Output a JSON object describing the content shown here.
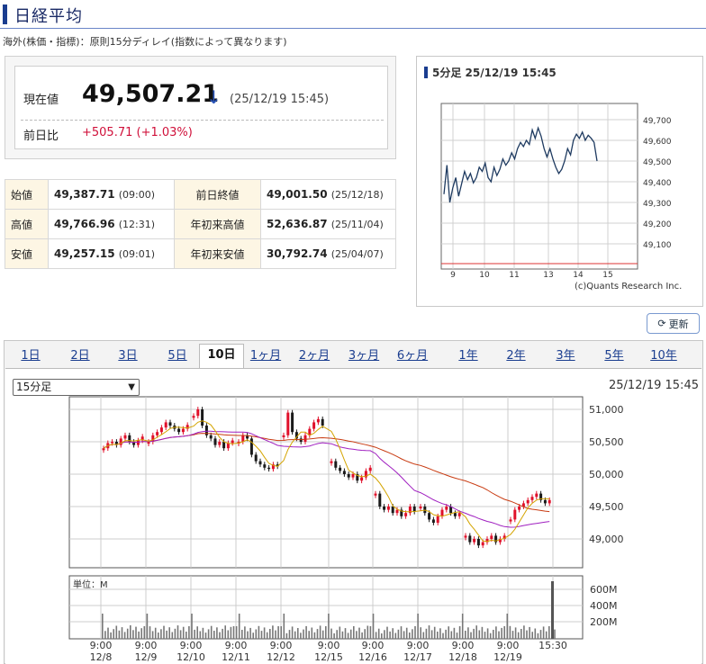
{
  "header": {
    "title": "日経平均",
    "note": "海外(株価・指標)：原則15分ディレイ(指数によって異なります)"
  },
  "quote": {
    "current_label": "現在値",
    "price": "49,507.21",
    "arrow": "↓",
    "time": "(25/12/19 15:45)",
    "change_label": "前日比",
    "change": "+505.71 (+1.03%)"
  },
  "stats": {
    "open_label": "始値",
    "open": "49,387.71",
    "open_time": "(09:00)",
    "prev_label": "前日終値",
    "prev": "49,001.50",
    "prev_date": "(25/12/18)",
    "high_label": "高値",
    "high": "49,766.96",
    "high_time": "(12:31)",
    "ytd_high_label": "年初来高値",
    "ytd_high": "52,636.87",
    "ytd_high_date": "(25/11/04)",
    "low_label": "安値",
    "low": "49,257.15",
    "low_time": "(09:01)",
    "ytd_low_label": "年初来安値",
    "ytd_low": "30,792.74",
    "ytd_low_date": "(25/04/07)"
  },
  "mini_chart": {
    "title": "5分足 25/12/19 15:45",
    "credit": "(c)Quants Research Inc.",
    "y_ticks": [
      "49,700",
      "49,600",
      "49,500",
      "49,400",
      "49,300",
      "49,200",
      "49,100"
    ],
    "x_ticks": [
      "9",
      "10",
      "11",
      "13",
      "14",
      "15"
    ]
  },
  "update_button": {
    "label": "更新",
    "icon": "refresh-icon"
  },
  "tabs": [
    "1日",
    "2日",
    "3日",
    "5日",
    "10日",
    "1ヶ月",
    "2ヶ月",
    "3ヶ月",
    "6ヶ月",
    "1年",
    "2年",
    "3年",
    "5年",
    "10年"
  ],
  "active_tab": "10日",
  "interval_select": {
    "value": "15分足"
  },
  "main_chart": {
    "timestamp": "25/12/19 15:45",
    "y_ticks": [
      "51,000",
      "50,500",
      "50,000",
      "49,500",
      "49,000"
    ],
    "volume_unit": "単位：M",
    "volume_ticks": [
      "600M",
      "400M",
      "200M"
    ],
    "x_times": [
      "9:00",
      "9:00",
      "9:00",
      "9:00",
      "9:00",
      "9:00",
      "9:00",
      "9:00",
      "9:00",
      "9:00",
      "15:30"
    ],
    "x_dates": [
      "12/8",
      "12/9",
      "12/10",
      "12/11",
      "12/12",
      "12/15",
      "12/16",
      "12/17",
      "12/18",
      "12/19",
      ""
    ]
  },
  "colors": {
    "up": "#e0102a",
    "down": "#1a1a1a",
    "ma_short": "#d4a400",
    "ma_mid": "#a020c0",
    "ma_long": "#c83a10",
    "accent": "#1a3d8f"
  }
}
